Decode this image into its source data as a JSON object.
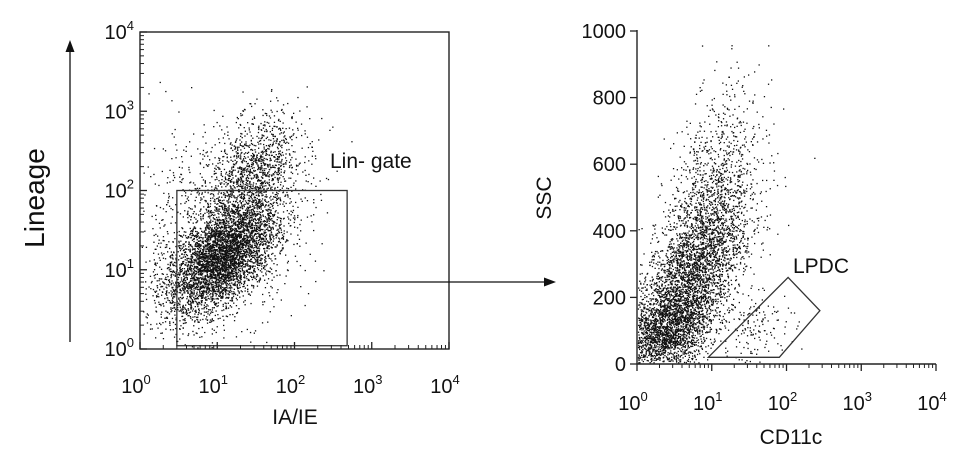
{
  "chart_data": [
    {
      "type": "scatter",
      "title": "",
      "xlabel": "IA/IE",
      "ylabel": "Lineage",
      "xscale": "log",
      "yscale": "log",
      "xlim": [
        1,
        10000
      ],
      "ylim": [
        1,
        10000
      ],
      "x_ticks": [
        {
          "base": "10",
          "exp": "0"
        },
        {
          "base": "10",
          "exp": "1"
        },
        {
          "base": "10",
          "exp": "2"
        },
        {
          "base": "10",
          "exp": "3"
        },
        {
          "base": "10",
          "exp": "4"
        }
      ],
      "y_ticks": [
        {
          "base": "10",
          "exp": "0"
        },
        {
          "base": "10",
          "exp": "1"
        },
        {
          "base": "10",
          "exp": "2"
        },
        {
          "base": "10",
          "exp": "3"
        },
        {
          "base": "10",
          "exp": "4"
        }
      ],
      "gate": {
        "label": "Lin- gate",
        "shape": "rectangle",
        "x_range": [
          3,
          480
        ],
        "y_range": [
          1.1,
          100
        ]
      },
      "populations": [
        {
          "n": 4200,
          "x_log_mean": 1.05,
          "x_log_sd": 0.36,
          "y_log_mean": 1.15,
          "y_log_sd": 0.36,
          "corr": 0.55
        },
        {
          "n": 1100,
          "x_log_mean": 1.45,
          "x_log_sd": 0.3,
          "y_log_mean": 2.2,
          "y_log_sd": 0.38,
          "corr": 0.45
        },
        {
          "n": 900,
          "x_log_mean": 1.0,
          "x_log_sd": 0.6,
          "y_log_mean": 1.6,
          "y_log_sd": 0.65,
          "corr": 0.2
        }
      ],
      "dot_color": "#111111",
      "grid": false,
      "legend": "none"
    },
    {
      "type": "scatter",
      "title": "",
      "xlabel": "CD11c",
      "ylabel": "SSC",
      "xscale": "log",
      "yscale": "linear",
      "xlim": [
        1,
        10000
      ],
      "ylim": [
        0,
        1000
      ],
      "x_ticks": [
        {
          "base": "10",
          "exp": "0"
        },
        {
          "base": "10",
          "exp": "1"
        },
        {
          "base": "10",
          "exp": "2"
        },
        {
          "base": "10",
          "exp": "3"
        },
        {
          "base": "10",
          "exp": "4"
        }
      ],
      "y_ticks": [
        "0",
        "200",
        "400",
        "600",
        "800",
        "1000"
      ],
      "gate": {
        "label": "LPDC",
        "shape": "polygon",
        "points": [
          [
            9,
            20
          ],
          [
            80,
            20
          ],
          [
            280,
            160
          ],
          [
            105,
            260
          ]
        ]
      },
      "populations": [
        {
          "n": 3300,
          "x_log_mean": 0.62,
          "x_log_sd": 0.38,
          "y_mean": 215,
          "y_sd": 140,
          "corr": 0.62
        },
        {
          "n": 1300,
          "x_log_mean": 1.0,
          "x_log_sd": 0.32,
          "y_mean": 470,
          "y_sd": 170,
          "corr": 0.4
        },
        {
          "n": 1100,
          "x_log_mean": 0.35,
          "x_log_sd": 0.3,
          "y_mean": 90,
          "y_sd": 55,
          "corr": 0.2
        },
        {
          "n": 130,
          "x_log_mean": 1.6,
          "x_log_sd": 0.25,
          "y_mean": 110,
          "y_sd": 50,
          "corr": 0.3
        }
      ],
      "dot_color": "#111111",
      "grid": false,
      "legend": "none"
    }
  ]
}
